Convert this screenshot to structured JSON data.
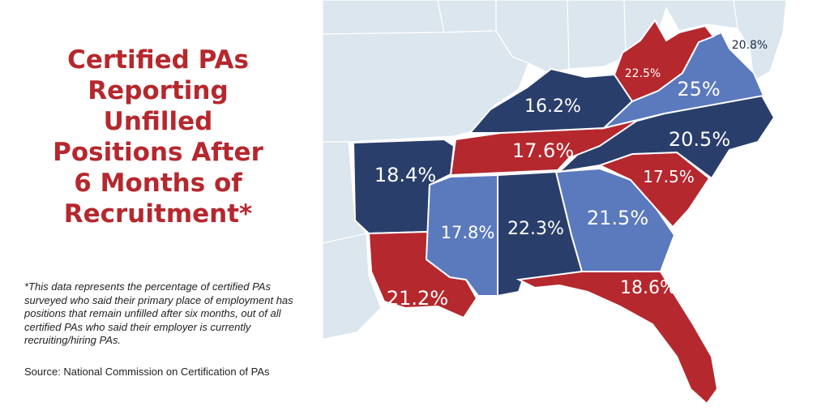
{
  "title_lines": [
    "Certified PAs",
    "Reporting",
    "Unfilled",
    "Positions After",
    "6 Months of",
    "Recruitment*"
  ],
  "footnote": "*This data represents the percentage of certified PAs surveyed who said their primary place of employment has positions that remain unfilled after six months, out of all certified PAs who said their employer is currently recruiting/hiring PAs.",
  "source": "Source: National Commission on Certification of PAs",
  "colors": {
    "navy": "#2a3e6b",
    "light_blue": "#5b79bd",
    "red": "#b5282e",
    "background_states": "#dbe6ee",
    "title": "#b5282e"
  },
  "states": [
    {
      "id": "arkansas",
      "value": "18.4%",
      "color": "navy"
    },
    {
      "id": "louisiana",
      "value": "21.2%",
      "color": "red"
    },
    {
      "id": "mississippi",
      "value": "17.8%",
      "color": "light_blue"
    },
    {
      "id": "alabama",
      "value": "22.3%",
      "color": "navy"
    },
    {
      "id": "georgia",
      "value": "21.5%",
      "color": "light_blue"
    },
    {
      "id": "florida",
      "value": "18.6%",
      "color": "red"
    },
    {
      "id": "south-carolina",
      "value": "17.5%",
      "color": "red"
    },
    {
      "id": "north-carolina",
      "value": "20.5%",
      "color": "navy"
    },
    {
      "id": "tennessee",
      "value": "17.6%",
      "color": "red"
    },
    {
      "id": "kentucky",
      "value": "16.2%",
      "color": "navy"
    },
    {
      "id": "virginia",
      "value": "25%",
      "color": "light_blue"
    },
    {
      "id": "west-virginia",
      "value": "22.5%",
      "color": "red"
    },
    {
      "id": "maryland",
      "value": "20.8%",
      "color": "none"
    }
  ]
}
